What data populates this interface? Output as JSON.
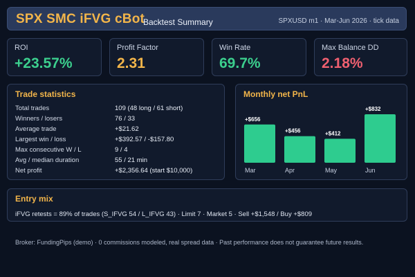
{
  "header": {
    "title": "SPX SMC iFVG cBot",
    "subtitle": "Backtest Summary",
    "meta": "SPXUSD m1 · Mar-Jun 2026 · tick data"
  },
  "kpis": [
    {
      "label": "ROI",
      "value": "+23.57%",
      "color": "#3ccf8e"
    },
    {
      "label": "Profit Factor",
      "value": "2.31",
      "color": "#f2b54a"
    },
    {
      "label": "Win Rate",
      "value": "69.7%",
      "color": "#3ccf8e"
    },
    {
      "label": "Max Balance DD",
      "value": "2.18%",
      "color": "#f06070"
    }
  ],
  "trade_stats": {
    "title": "Trade statistics",
    "rows": [
      {
        "label": "Total trades",
        "value": "109  (48 long / 61 short)"
      },
      {
        "label": "Winners / losers",
        "value": "76 / 33"
      },
      {
        "label": "Average trade",
        "value": "+$21.62"
      },
      {
        "label": "Largest win / loss",
        "value": "+$392.57 / -$157.80"
      },
      {
        "label": "Max consecutive W / L",
        "value": "9 / 4"
      },
      {
        "label": "Avg / median duration",
        "value": "55 / 21 min"
      },
      {
        "label": "Net profit",
        "value": "+$2,356.64  (start $10,000)"
      }
    ]
  },
  "monthly": {
    "title": "Monthly net PnL"
  },
  "chart_data": {
    "type": "bar",
    "categories": [
      "Mar",
      "Apr",
      "May",
      "Jun"
    ],
    "values": [
      656,
      456,
      412,
      832
    ],
    "data_labels": [
      "+$656",
      "+$456",
      "+$412",
      "+$832"
    ],
    "title": "Monthly net PnL",
    "xlabel": "",
    "ylabel": "",
    "ylim": [
      0,
      832
    ],
    "grid": false,
    "bar_color": "#2ecc8f"
  },
  "entry_mix": {
    "title": "Entry mix",
    "text": "iFVG retests = 89% of trades (S_IFVG 54 / L_IFVG 43) · Limit 7 · Market 5 · Sell +$1,548 / Buy +$809"
  },
  "footer": {
    "text": "Broker: FundingPips (demo)  ·  0 commissions modeled, real spread data  ·  Past performance does not guarantee future results."
  }
}
